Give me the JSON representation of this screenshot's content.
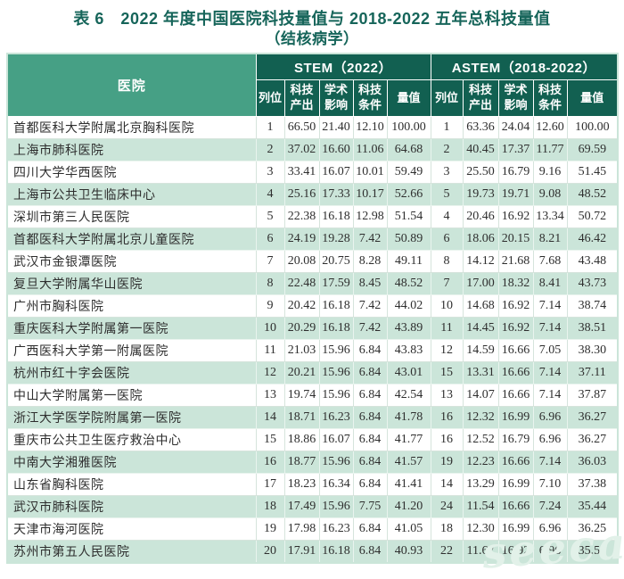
{
  "title": {
    "line1": "表 6　2022 年度中国医院科技量值与 2018-2022 五年总科技量值",
    "line2": "（结核病学）"
  },
  "table": {
    "hospital_header": "医院",
    "group_headers": {
      "stem": "STEM（2022）",
      "astem": "ASTEM（2018-2022）"
    },
    "sub_headers": [
      "列位",
      "科技产出",
      "学术影响",
      "科技条件",
      "量值"
    ],
    "rows": [
      {
        "hospital": "首都医科大学附属北京胸科医院",
        "values": [
          "1",
          "66.50",
          "21.40",
          "12.10",
          "100.00",
          "1",
          "63.36",
          "24.04",
          "12.60",
          "100.00"
        ]
      },
      {
        "hospital": "上海市肺科医院",
        "values": [
          "2",
          "37.02",
          "16.60",
          "11.06",
          "64.68",
          "2",
          "40.45",
          "17.37",
          "11.77",
          "69.59"
        ]
      },
      {
        "hospital": "四川大学华西医院",
        "values": [
          "3",
          "33.41",
          "16.07",
          "10.01",
          "59.49",
          "3",
          "25.50",
          "16.79",
          "9.16",
          "51.45"
        ]
      },
      {
        "hospital": "上海市公共卫生临床中心",
        "values": [
          "4",
          "25.16",
          "17.33",
          "10.17",
          "52.66",
          "5",
          "19.73",
          "19.71",
          "9.08",
          "48.52"
        ]
      },
      {
        "hospital": "深圳市第三人民医院",
        "values": [
          "5",
          "22.38",
          "16.18",
          "12.98",
          "51.54",
          "4",
          "20.46",
          "16.92",
          "13.34",
          "50.72"
        ]
      },
      {
        "hospital": "首都医科大学附属北京儿童医院",
        "values": [
          "6",
          "24.19",
          "19.28",
          "7.42",
          "50.89",
          "6",
          "18.06",
          "20.15",
          "8.21",
          "46.42"
        ]
      },
      {
        "hospital": "武汉市金银潭医院",
        "values": [
          "7",
          "20.08",
          "20.75",
          "8.28",
          "49.11",
          "8",
          "14.12",
          "21.68",
          "7.68",
          "43.48"
        ]
      },
      {
        "hospital": "复旦大学附属华山医院",
        "values": [
          "8",
          "22.48",
          "17.59",
          "8.45",
          "48.52",
          "7",
          "17.00",
          "18.32",
          "8.41",
          "43.73"
        ]
      },
      {
        "hospital": "广州市胸科医院",
        "values": [
          "9",
          "20.42",
          "16.18",
          "7.42",
          "44.02",
          "10",
          "14.68",
          "16.92",
          "7.14",
          "38.74"
        ]
      },
      {
        "hospital": "重庆医科大学附属第一医院",
        "values": [
          "10",
          "20.29",
          "16.18",
          "7.42",
          "43.89",
          "11",
          "14.45",
          "16.92",
          "7.14",
          "38.51"
        ]
      },
      {
        "hospital": "广西医科大学第一附属医院",
        "values": [
          "11",
          "21.03",
          "15.96",
          "6.84",
          "43.83",
          "12",
          "14.59",
          "16.66",
          "7.05",
          "38.30"
        ]
      },
      {
        "hospital": "杭州市红十字会医院",
        "values": [
          "12",
          "20.21",
          "15.96",
          "6.84",
          "43.01",
          "15",
          "13.31",
          "16.66",
          "7.14",
          "37.11"
        ]
      },
      {
        "hospital": "中山大学附属第一医院",
        "values": [
          "13",
          "19.74",
          "15.96",
          "6.84",
          "42.54",
          "13",
          "14.07",
          "16.66",
          "7.14",
          "37.87"
        ]
      },
      {
        "hospital": "浙江大学医学院附属第一医院",
        "values": [
          "14",
          "18.71",
          "16.23",
          "6.84",
          "41.78",
          "16",
          "12.32",
          "16.99",
          "6.96",
          "36.27"
        ]
      },
      {
        "hospital": "重庆市公共卫生医疗救治中心",
        "values": [
          "15",
          "18.86",
          "16.07",
          "6.84",
          "41.77",
          "16",
          "12.52",
          "16.79",
          "6.96",
          "36.27"
        ]
      },
      {
        "hospital": "中南大学湘雅医院",
        "values": [
          "16",
          "18.77",
          "15.96",
          "6.84",
          "41.57",
          "19",
          "12.23",
          "16.66",
          "7.14",
          "36.03"
        ]
      },
      {
        "hospital": "山东省胸科医院",
        "values": [
          "17",
          "18.23",
          "16.34",
          "6.84",
          "41.41",
          "14",
          "13.29",
          "16.99",
          "7.10",
          "37.38"
        ]
      },
      {
        "hospital": "武汉市肺科医院",
        "values": [
          "18",
          "17.49",
          "15.96",
          "7.75",
          "41.20",
          "24",
          "11.54",
          "16.66",
          "7.24",
          "35.44"
        ]
      },
      {
        "hospital": "天津市海河医院",
        "values": [
          "19",
          "17.98",
          "16.23",
          "6.84",
          "41.05",
          "18",
          "12.30",
          "16.99",
          "6.96",
          "36.25"
        ]
      },
      {
        "hospital": "苏州市第五人民医院",
        "values": [
          "20",
          "17.91",
          "16.18",
          "6.84",
          "40.93",
          "22",
          "11.67",
          "16.92",
          "6.96",
          "35.55"
        ]
      }
    ]
  },
  "watermark": "seeca",
  "colors": {
    "header_dark_green": "#126051",
    "header_medium_green": "#46a085",
    "row_light_green": "#cbe5d9",
    "title_text": "#16655a"
  }
}
